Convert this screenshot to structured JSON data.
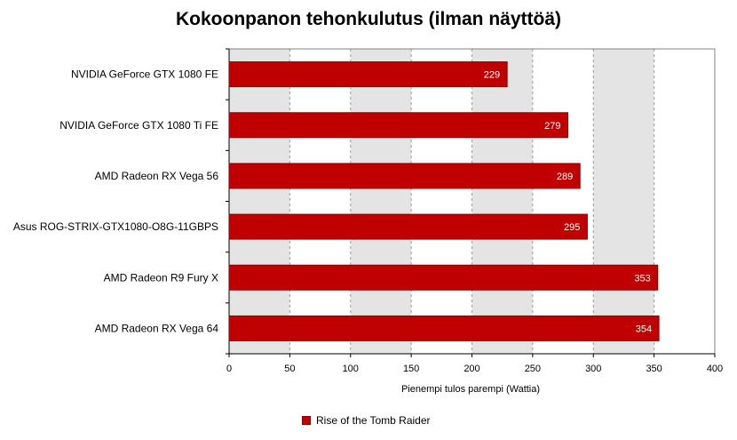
{
  "chart_data": {
    "type": "bar",
    "orientation": "horizontal",
    "title": "Kokoonpanon tehonkulutus (ilman näyttöä)",
    "xlabel": "Pienempi tulos parempi (Wattia)",
    "ylabel": "",
    "categories": [
      "NVIDIA GeForce GTX 1080 FE",
      "NVIDIA GeForce GTX 1080 Ti FE",
      "AMD Radeon RX Vega 56",
      "Asus ROG-STRIX-GTX1080-O8G-11GBPS",
      "AMD Radeon R9 Fury X",
      "AMD Radeon RX Vega 64"
    ],
    "series": [
      {
        "name": "Rise of the Tomb Raider",
        "values": [
          229,
          279,
          289,
          295,
          353,
          354
        ]
      }
    ],
    "xlim": [
      0,
      400
    ],
    "xticks": [
      "0",
      "50",
      "100",
      "150",
      "200",
      "250",
      "300",
      "350",
      "400"
    ],
    "grid": true,
    "legend_position": "bottom",
    "colors": {
      "bar": "#c00000",
      "bar_border": "#8a0000",
      "band_dark": "#e4e4e4",
      "band_light": "#ffffff"
    }
  }
}
